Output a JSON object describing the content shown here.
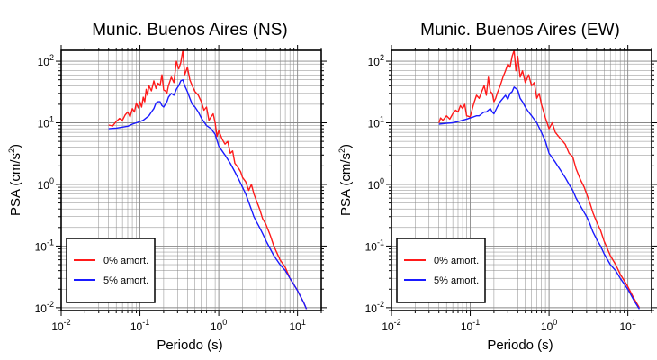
{
  "charts": [
    {
      "title": "Munic. Buenos Aires (NS)",
      "xlabel": "Periodo (s)",
      "ylabel_main": "PSA (cm/s",
      "ylabel_sup": "2",
      "ylabel_end": ")"
    },
    {
      "title": "Munic. Buenos Aires (EW)",
      "xlabel": "Periodo (s)",
      "ylabel_main": "PSA (cm/s",
      "ylabel_sup": "2",
      "ylabel_end": ")"
    }
  ],
  "legend": {
    "red_label": "0% amort.",
    "blue_label": "5% amort."
  },
  "colors": {
    "red": "#ff1a1a",
    "blue": "#1a1aff",
    "grid": "#888888"
  },
  "chart_data": [
    {
      "type": "line",
      "title": "Munic. Buenos Aires (NS)",
      "xlabel": "Periodo (s)",
      "ylabel": "PSA (cm/s2)",
      "xscale": "log",
      "yscale": "log",
      "xlim": [
        0.01,
        20
      ],
      "ylim": [
        0.009,
        150
      ],
      "xticks": [
        "10^-2",
        "10^-1",
        "10^0",
        "10^1"
      ],
      "yticks": [
        "10^-2",
        "10^-1",
        "10^0",
        "10^1",
        "10^2"
      ],
      "grid": true,
      "legend_position": "bottom-left",
      "series": [
        {
          "name": "0% amort.",
          "color": "#ff1a1a",
          "x": [
            0.04,
            0.045,
            0.05,
            0.055,
            0.06,
            0.065,
            0.07,
            0.075,
            0.08,
            0.085,
            0.09,
            0.095,
            0.1,
            0.105,
            0.11,
            0.115,
            0.12,
            0.125,
            0.13,
            0.14,
            0.15,
            0.16,
            0.17,
            0.18,
            0.19,
            0.2,
            0.21,
            0.22,
            0.23,
            0.25,
            0.27,
            0.29,
            0.31,
            0.33,
            0.35,
            0.37,
            0.4,
            0.43,
            0.46,
            0.5,
            0.55,
            0.6,
            0.65,
            0.7,
            0.75,
            0.8,
            0.85,
            0.9,
            0.95,
            1.0,
            1.1,
            1.2,
            1.3,
            1.4,
            1.5,
            1.6,
            1.7,
            1.8,
            1.9,
            2.0,
            2.2,
            2.4,
            2.6,
            2.8,
            3.0,
            3.3,
            3.6,
            4.0,
            4.5,
            5.0,
            6.0,
            7.0,
            8.0,
            10.0,
            12.0,
            13.0
          ],
          "y": [
            9.2,
            8.9,
            10.5,
            11.8,
            11.0,
            13.5,
            15.0,
            12.5,
            17.0,
            15.0,
            21.0,
            17.5,
            22.0,
            18.0,
            26.0,
            22.0,
            35.0,
            28.0,
            40.0,
            33.0,
            48.0,
            36.0,
            44.0,
            40.0,
            60.0,
            34.0,
            33.0,
            30.0,
            40.0,
            55.0,
            45.0,
            100.0,
            75.0,
            95.0,
            150.0,
            60.0,
            80.0,
            50.0,
            40.0,
            32.0,
            28.0,
            22.0,
            16.0,
            18.0,
            11.0,
            12.5,
            14.0,
            10.0,
            6.0,
            7.5,
            5.5,
            4.5,
            5.0,
            3.2,
            3.5,
            2.2,
            2.0,
            1.8,
            1.6,
            1.3,
            1.1,
            0.8,
            1.0,
            0.7,
            0.55,
            0.4,
            0.28,
            0.22,
            0.15,
            0.1,
            0.06,
            0.045,
            0.03,
            0.019,
            0.012,
            0.0095
          ]
        },
        {
          "name": "5% amort.",
          "color": "#1a1aff",
          "x": [
            0.04,
            0.05,
            0.06,
            0.07,
            0.08,
            0.09,
            0.1,
            0.11,
            0.12,
            0.13,
            0.14,
            0.15,
            0.16,
            0.17,
            0.18,
            0.19,
            0.2,
            0.21,
            0.22,
            0.23,
            0.25,
            0.27,
            0.29,
            0.31,
            0.33,
            0.35,
            0.37,
            0.4,
            0.43,
            0.46,
            0.5,
            0.55,
            0.6,
            0.7,
            0.8,
            0.9,
            1.0,
            1.2,
            1.4,
            1.6,
            1.8,
            2.0,
            2.2,
            2.5,
            2.8,
            3.0,
            3.3,
            3.6,
            4.0,
            4.5,
            5.0,
            6.0,
            7.0,
            8.0,
            10.0,
            12.0,
            13.0
          ],
          "y": [
            8.0,
            8.2,
            8.5,
            8.8,
            9.5,
            10.0,
            10.5,
            11.0,
            12.0,
            13.0,
            15.0,
            17.0,
            21.0,
            22.0,
            22.0,
            19.0,
            18.0,
            20.0,
            22.0,
            26.0,
            30.0,
            28.0,
            35.0,
            40.0,
            48.0,
            50.0,
            40.0,
            32.0,
            25.0,
            20.0,
            18.0,
            15.0,
            12.0,
            9.0,
            8.0,
            6.5,
            4.2,
            3.0,
            2.2,
            1.6,
            1.2,
            0.9,
            0.7,
            0.45,
            0.3,
            0.25,
            0.2,
            0.16,
            0.12,
            0.09,
            0.07,
            0.05,
            0.04,
            0.03,
            0.019,
            0.012,
            0.0095
          ]
        }
      ]
    },
    {
      "type": "line",
      "title": "Munic. Buenos Aires (EW)",
      "xlabel": "Periodo (s)",
      "ylabel": "PSA (cm/s2)",
      "xscale": "log",
      "yscale": "log",
      "xlim": [
        0.01,
        20
      ],
      "ylim": [
        0.009,
        150
      ],
      "xticks": [
        "10^-2",
        "10^-1",
        "10^0",
        "10^1"
      ],
      "yticks": [
        "10^-2",
        "10^-1",
        "10^0",
        "10^1",
        "10^2"
      ],
      "grid": true,
      "legend_position": "bottom-left",
      "series": [
        {
          "name": "0% amort.",
          "color": "#ff1a1a",
          "x": [
            0.04,
            0.042,
            0.045,
            0.05,
            0.055,
            0.06,
            0.065,
            0.07,
            0.075,
            0.08,
            0.085,
            0.09,
            0.1,
            0.11,
            0.12,
            0.13,
            0.14,
            0.15,
            0.16,
            0.17,
            0.18,
            0.19,
            0.2,
            0.21,
            0.22,
            0.24,
            0.26,
            0.28,
            0.3,
            0.32,
            0.34,
            0.36,
            0.38,
            0.4,
            0.43,
            0.46,
            0.5,
            0.55,
            0.6,
            0.65,
            0.7,
            0.75,
            0.8,
            0.9,
            1.0,
            1.1,
            1.2,
            1.4,
            1.6,
            1.8,
            2.0,
            2.2,
            2.5,
            2.8,
            3.0,
            3.3,
            3.6,
            4.0,
            4.5,
            5.0,
            6.0,
            7.0,
            8.0,
            10.0,
            12.0,
            14.0
          ],
          "y": [
            10.0,
            12.0,
            11.0,
            13.0,
            11.5,
            14.0,
            16.0,
            15.0,
            19.0,
            17.0,
            20.0,
            13.0,
            12.5,
            20.0,
            28.0,
            25.0,
            32.0,
            40.0,
            28.0,
            55.0,
            32.0,
            30.0,
            22.0,
            25.0,
            30.0,
            40.0,
            55.0,
            70.0,
            90.0,
            80.0,
            120.0,
            150.0,
            70.0,
            120.0,
            55.0,
            70.0,
            45.0,
            60.0,
            40.0,
            45.0,
            25.0,
            30.0,
            20.0,
            12.0,
            8.0,
            10.0,
            7.0,
            5.5,
            4.5,
            3.2,
            2.8,
            1.8,
            1.2,
            0.9,
            0.7,
            0.5,
            0.35,
            0.25,
            0.18,
            0.12,
            0.07,
            0.05,
            0.035,
            0.022,
            0.014,
            0.01
          ]
        },
        {
          "name": "5% amort.",
          "color": "#1a1aff",
          "x": [
            0.04,
            0.05,
            0.06,
            0.07,
            0.08,
            0.09,
            0.1,
            0.11,
            0.12,
            0.13,
            0.14,
            0.15,
            0.16,
            0.17,
            0.18,
            0.19,
            0.2,
            0.22,
            0.24,
            0.26,
            0.28,
            0.3,
            0.32,
            0.34,
            0.36,
            0.38,
            0.4,
            0.43,
            0.46,
            0.5,
            0.55,
            0.6,
            0.7,
            0.8,
            0.9,
            1.0,
            1.2,
            1.4,
            1.6,
            1.8,
            2.0,
            2.2,
            2.5,
            2.8,
            3.0,
            3.3,
            3.6,
            4.0,
            4.5,
            5.0,
            6.0,
            7.0,
            8.0,
            10.0,
            12.0,
            14.0
          ],
          "y": [
            9.5,
            9.8,
            10.0,
            10.5,
            11.0,
            11.5,
            12.0,
            12.5,
            13.0,
            13.0,
            14.0,
            15.0,
            15.0,
            16.0,
            17.0,
            15.0,
            14.0,
            18.0,
            22.0,
            25.0,
            28.0,
            24.0,
            30.0,
            32.0,
            38.0,
            36.0,
            34.0,
            25.0,
            22.0,
            18.0,
            15.0,
            13.0,
            10.0,
            7.0,
            5.0,
            3.2,
            2.3,
            1.7,
            1.3,
            1.0,
            0.8,
            0.6,
            0.45,
            0.35,
            0.3,
            0.23,
            0.17,
            0.13,
            0.1,
            0.075,
            0.05,
            0.04,
            0.03,
            0.02,
            0.013,
            0.0095
          ]
        }
      ]
    }
  ]
}
